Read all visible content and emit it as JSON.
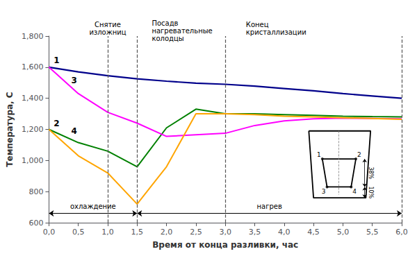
{
  "chart_data": {
    "type": "line",
    "xlabel": "Время от конца разливки, час",
    "ylabel": "Температура, С",
    "xlim": [
      0.0,
      6.0
    ],
    "ylim": [
      600,
      1800
    ],
    "xticks": [
      {
        "value": 0.0,
        "label": "0,0"
      },
      {
        "value": 0.5,
        "label": "0,5"
      },
      {
        "value": 1.0,
        "label": "1,0"
      },
      {
        "value": 1.5,
        "label": "1,5"
      },
      {
        "value": 2.0,
        "label": "2,0"
      },
      {
        "value": 2.5,
        "label": "2,5"
      },
      {
        "value": 3.0,
        "label": "3,0"
      },
      {
        "value": 3.5,
        "label": "3,5"
      },
      {
        "value": 4.0,
        "label": "4,0"
      },
      {
        "value": 4.5,
        "label": "4,5"
      },
      {
        "value": 5.0,
        "label": "5,0"
      },
      {
        "value": 5.5,
        "label": "5,5"
      },
      {
        "value": 6.0,
        "label": "6,0"
      }
    ],
    "yticks": [
      600,
      800,
      1000,
      1200,
      1400,
      1600,
      1800
    ],
    "grid": false,
    "x": [
      0.0,
      0.5,
      1.0,
      1.5,
      2.0,
      2.5,
      3.0,
      3.5,
      4.0,
      4.5,
      5.0,
      5.5,
      6.0
    ],
    "series": [
      {
        "color": "#00008B",
        "values": [
          1600,
          1570,
          1545,
          1525,
          1510,
          1497,
          1490,
          1478,
          1463,
          1448,
          1430,
          1415,
          1400
        ]
      },
      {
        "color": "#008000",
        "values": [
          1200,
          1115,
          1060,
          960,
          1210,
          1330,
          1300,
          1300,
          1295,
          1290,
          1285,
          1282,
          1280
        ]
      },
      {
        "color": "#FF00FF",
        "values": [
          1600,
          1430,
          1310,
          1240,
          1155,
          1165,
          1175,
          1225,
          1255,
          1268,
          1272,
          1270,
          1268
        ]
      },
      {
        "color": "#FFA500",
        "values": [
          1200,
          1030,
          920,
          720,
          960,
          1300,
          1300,
          1295,
          1285,
          1280,
          1275,
          1270,
          1265
        ]
      }
    ],
    "vlines": [
      1.0,
      1.5,
      3.0,
      6.0
    ],
    "annotations": [
      {
        "text": "1",
        "x": 0.08,
        "y": 1620,
        "bold": true,
        "align": "left"
      },
      {
        "text": "2",
        "x": 0.08,
        "y": 1215,
        "bold": true,
        "align": "left"
      },
      {
        "text": "3",
        "x": 0.38,
        "y": 1490,
        "bold": true,
        "align": "left"
      },
      {
        "text": "4",
        "x": 0.38,
        "y": 1165,
        "bold": true,
        "align": "left"
      },
      {
        "text": "Снятие\nизложниц",
        "x": 1.0,
        "y": 1800,
        "bold": false,
        "align": "center"
      },
      {
        "text": "Посадв\nнагревательные\nколодцы",
        "x": 1.75,
        "y": 1760,
        "bold": false,
        "align": "left"
      },
      {
        "text": "Конец\nкристаллизации",
        "x": 3.35,
        "y": 1800,
        "bold": false,
        "align": "left"
      }
    ],
    "spans": [
      {
        "text": "охлаждение",
        "x": [
          0.0,
          1.5
        ],
        "y": 660
      },
      {
        "text": "нагрев",
        "x": [
          1.5,
          6.0
        ],
        "y": 660
      }
    ],
    "diagram": {
      "outer": [
        [
          4.42,
          1190
        ],
        [
          5.47,
          1190
        ],
        [
          5.39,
          760
        ],
        [
          4.5,
          760
        ]
      ],
      "inner": [
        [
          4.65,
          1010
        ],
        [
          5.22,
          1010
        ],
        [
          5.14,
          830
        ],
        [
          4.73,
          830
        ]
      ],
      "corner_labels": [
        "1",
        "2",
        "4",
        "3"
      ],
      "centerline": [
        [
          4.93,
          1190
        ],
        [
          4.93,
          780
        ]
      ],
      "dimensions": [
        {
          "text": "38%",
          "x": 5.37,
          "y": [
            1010,
            830
          ]
        },
        {
          "text": "10%",
          "x": 5.37,
          "y": [
            830,
            760
          ]
        }
      ]
    }
  }
}
